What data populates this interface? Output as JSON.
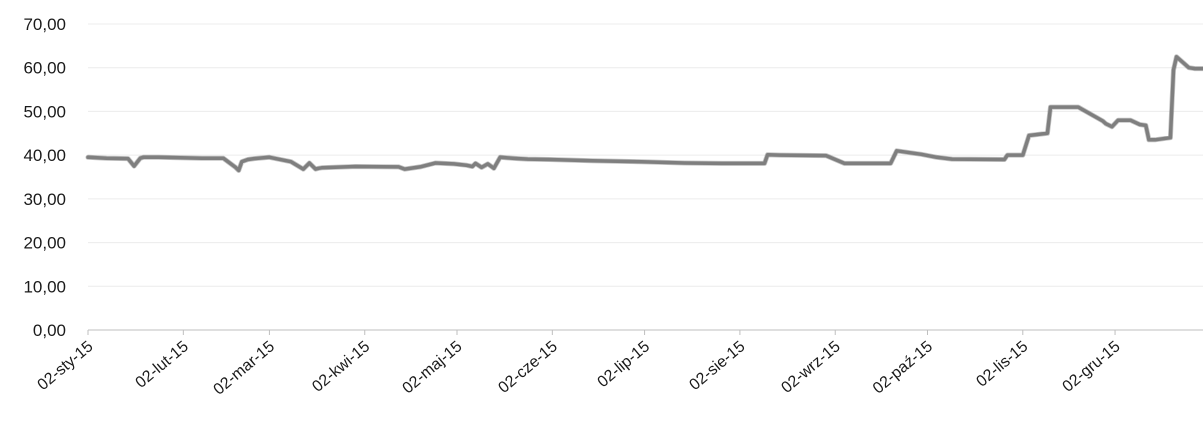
{
  "chart_data": {
    "type": "line",
    "title": "",
    "xlabel": "",
    "ylabel": "",
    "ylim": [
      0,
      70
    ],
    "y_ticks": [
      "0,00",
      "10,00",
      "20,00",
      "30,00",
      "40,00",
      "50,00",
      "60,00",
      "70,00"
    ],
    "x_ticks": [
      "02-sty-15",
      "02-lut-15",
      "02-mar-15",
      "02-kwi-15",
      "02-maj-15",
      "02-cze-15",
      "02-lip-15",
      "02-sie-15",
      "02-wrz-15",
      "02-paź-15",
      "02-lis-15",
      "02-gru-15"
    ],
    "grid": "horizontal",
    "line_color": "#7f7f7f",
    "series": [
      {
        "x": [
          "2015-01-02",
          "2015-01-08",
          "2015-01-15",
          "2015-01-17",
          "2015-01-19",
          "2015-01-20",
          "2015-01-25",
          "2015-02-01",
          "2015-02-08",
          "2015-02-15",
          "2015-02-19",
          "2015-02-20",
          "2015-02-21",
          "2015-02-23",
          "2015-02-25",
          "2015-03-02",
          "2015-03-09",
          "2015-03-13",
          "2015-03-15",
          "2015-03-17",
          "2015-03-18",
          "2015-03-19",
          "2015-03-30",
          "2015-04-13",
          "2015-04-15",
          "2015-04-20",
          "2015-04-25",
          "2015-05-01",
          "2015-05-05",
          "2015-05-07",
          "2015-05-08",
          "2015-05-10",
          "2015-05-12",
          "2015-05-14",
          "2015-05-16",
          "2015-05-20",
          "2015-05-22",
          "2015-05-25",
          "2015-06-01",
          "2015-06-15",
          "2015-07-01",
          "2015-07-15",
          "2015-07-27",
          "2015-08-10",
          "2015-08-11",
          "2015-08-15",
          "2015-08-30",
          "2015-09-05",
          "2015-09-20",
          "2015-09-22",
          "2015-09-30",
          "2015-10-05",
          "2015-10-10",
          "2015-10-27",
          "2015-10-28",
          "2015-11-02",
          "2015-11-04",
          "2015-11-10",
          "2015-11-11",
          "2015-11-20",
          "2015-11-28",
          "2015-11-29",
          "2015-12-01",
          "2015-12-03",
          "2015-12-07",
          "2015-12-10",
          "2015-12-12",
          "2015-12-13",
          "2015-12-15",
          "2015-12-20",
          "2015-12-21",
          "2015-12-22",
          "2015-12-26",
          "2015-12-28",
          "2015-12-31"
        ],
        "y": [
          39.5,
          39.3,
          39.2,
          37.5,
          39.3,
          39.5,
          39.5,
          39.4,
          39.3,
          39.3,
          37.2,
          36.5,
          38.5,
          39,
          39.2,
          39.5,
          38.5,
          36.8,
          38.2,
          36.8,
          37,
          37.1,
          37.4,
          37.3,
          36.8,
          37.3,
          38.2,
          38,
          37.7,
          37.4,
          38.1,
          37.2,
          38,
          37,
          39.5,
          39.3,
          39.2,
          39.1,
          39,
          38.7,
          38.5,
          38.2,
          38.1,
          38.1,
          40.1,
          40,
          39.9,
          38.1,
          38.1,
          41,
          40.2,
          39.5,
          39.1,
          39,
          40,
          40,
          44.5,
          45,
          51,
          51,
          47.8,
          47.2,
          46.5,
          48,
          48,
          47,
          46.8,
          43.5,
          43.5,
          44,
          59.5,
          62.5,
          60,
          59.8,
          59.8
        ]
      }
    ]
  }
}
